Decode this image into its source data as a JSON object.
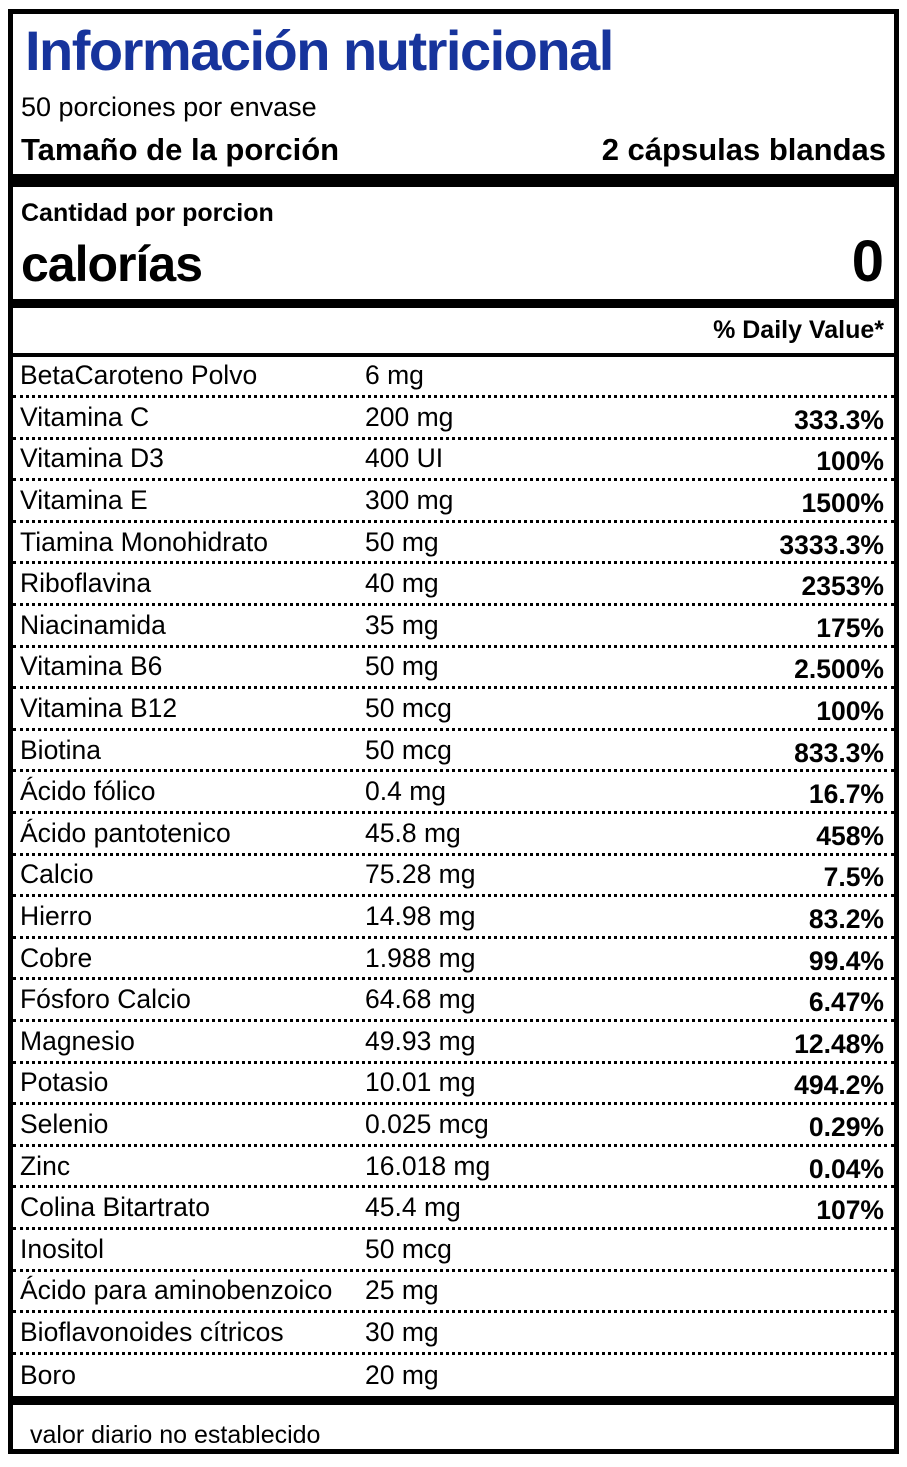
{
  "header": {
    "title": "Información nutricional",
    "servings_per_container": "50 porciones por envase",
    "serving_size_label": "Tamaño de la porción",
    "serving_size_value": "2 cápsulas blandas"
  },
  "calories_section": {
    "amount_per_serving_label": "Cantidad por porcion",
    "calories_label": "calorías",
    "calories_value": "0"
  },
  "table": {
    "daily_value_header": "% Daily Value*",
    "rows": [
      {
        "name": "BetaCaroteno Polvo",
        "amount": "6 mg",
        "dv": ""
      },
      {
        "name": "Vitamina C",
        "amount": "200 mg",
        "dv": "333.3%"
      },
      {
        "name": "Vitamina D3",
        "amount": "400 UI",
        "dv": "100%"
      },
      {
        "name": "Vitamina E",
        "amount": "300 mg",
        "dv": "1500%"
      },
      {
        "name": "Tiamina Monohidrato",
        "amount": "50 mg",
        "dv": "3333.3%"
      },
      {
        "name": "Riboflavina",
        "amount": "40 mg",
        "dv": "2353%"
      },
      {
        "name": "Niacinamida",
        "amount": "35 mg",
        "dv": "175%"
      },
      {
        "name": "Vitamina B6",
        "amount": "50 mg",
        "dv": "2.500%"
      },
      {
        "name": "Vitamina B12",
        "amount": "50 mcg",
        "dv": "100%"
      },
      {
        "name": "Biotina",
        "amount": "50 mcg",
        "dv": "833.3%"
      },
      {
        "name": "Ácido fólico",
        "amount": "0.4 mg",
        "dv": "16.7%"
      },
      {
        "name": "Ácido pantotenico",
        "amount": "45.8 mg",
        "dv": "458%"
      },
      {
        "name": "Calcio",
        "amount": "75.28 mg",
        "dv": "7.5%"
      },
      {
        "name": "Hierro",
        "amount": "14.98 mg",
        "dv": "83.2%"
      },
      {
        "name": "Cobre",
        "amount": "1.988 mg",
        "dv": "99.4%"
      },
      {
        "name": "Fósforo Calcio",
        "amount": "64.68 mg",
        "dv": "6.47%"
      },
      {
        "name": "Magnesio",
        "amount": "49.93 mg",
        "dv": "12.48%"
      },
      {
        "name": "Potasio",
        "amount": "10.01 mg",
        "dv": "494.2%"
      },
      {
        "name": "Selenio",
        "amount": "0.025 mcg",
        "dv": "0.29%"
      },
      {
        "name": "Zinc",
        "amount": "16.018 mg",
        "dv": "0.04%"
      },
      {
        "name": "Colina Bitartrato",
        "amount": "45.4 mg",
        "dv": "107%"
      },
      {
        "name": "Inositol",
        "amount": "50 mcg",
        "dv": ""
      },
      {
        "name": "Ácido para aminobenzoico",
        "amount": "25 mg",
        "dv": ""
      },
      {
        "name": "Bioflavonoides cítricos",
        "amount": "30 mg",
        "dv": ""
      },
      {
        "name": "Boro",
        "amount": "20 mg",
        "dv": ""
      }
    ]
  },
  "footnote": "valor diario no establecido",
  "colors": {
    "title_blue": "#17349c",
    "text": "#000000",
    "background": "#ffffff"
  }
}
